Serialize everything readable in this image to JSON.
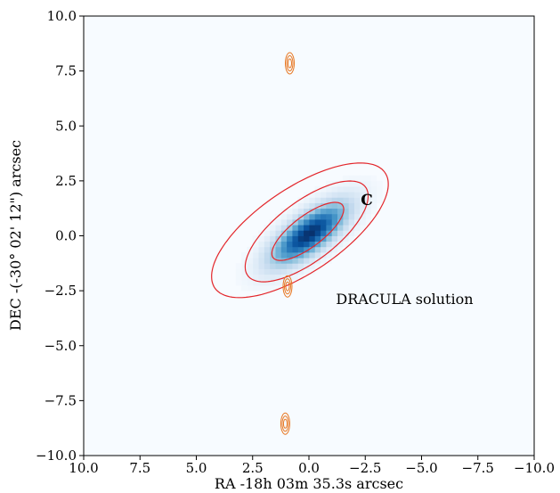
{
  "chart_data": {
    "type": "heatmap",
    "xlabel": "RA -18h 03m 35.3s arcsec",
    "ylabel": "DEC -(-30° 02' 12\") arcsec",
    "xlim": [
      10.0,
      -10.0
    ],
    "ylim": [
      -10.0,
      10.0
    ],
    "x_ticks": [
      10.0,
      7.5,
      5.0,
      2.5,
      0.0,
      -2.5,
      -5.0,
      -7.5,
      -10.0
    ],
    "y_ticks": [
      -10.0,
      -7.5,
      -5.0,
      -2.5,
      0.0,
      2.5,
      5.0,
      7.5,
      10.0
    ],
    "x_tick_labels": [
      "10.0",
      "7.5",
      "5.0",
      "2.5",
      "0.0",
      "−2.5",
      "−5.0",
      "−7.5",
      "−10.0"
    ],
    "y_tick_labels": [
      "−10.0",
      "−7.5",
      "−5.0",
      "−2.5",
      "0.0",
      "2.5",
      "5.0",
      "7.5",
      "10.0"
    ],
    "grid": false,
    "colormap": "Blues",
    "source": {
      "center": [
        0.0,
        0.1
      ],
      "angle_deg": -38,
      "sigma_major": 1.4,
      "sigma_minor": 0.55
    },
    "contours": [
      {
        "color": "#e3262b",
        "center": [
          0.4,
          0.25
        ],
        "angle_deg": -35,
        "a": 4.6,
        "b": 1.9
      },
      {
        "color": "#e3262b",
        "center": [
          0.1,
          0.2
        ],
        "angle_deg": -38,
        "a": 3.3,
        "b": 1.35
      },
      {
        "color": "#e3262b",
        "center": [
          0.05,
          0.2
        ],
        "angle_deg": -38,
        "a": 1.95,
        "b": 0.7
      }
    ],
    "orange_contour_color": "#e87722",
    "orange_sources": [
      {
        "x": 0.85,
        "y": 7.85
      },
      {
        "x": 0.95,
        "y": -2.3
      },
      {
        "x": 1.05,
        "y": -8.55
      }
    ],
    "annotations": [
      {
        "text": "C",
        "x": -2.3,
        "y": 1.4,
        "bold": true
      },
      {
        "text": "DRACULA solution",
        "x": -1.2,
        "y": -3.1,
        "bold": false
      }
    ]
  }
}
